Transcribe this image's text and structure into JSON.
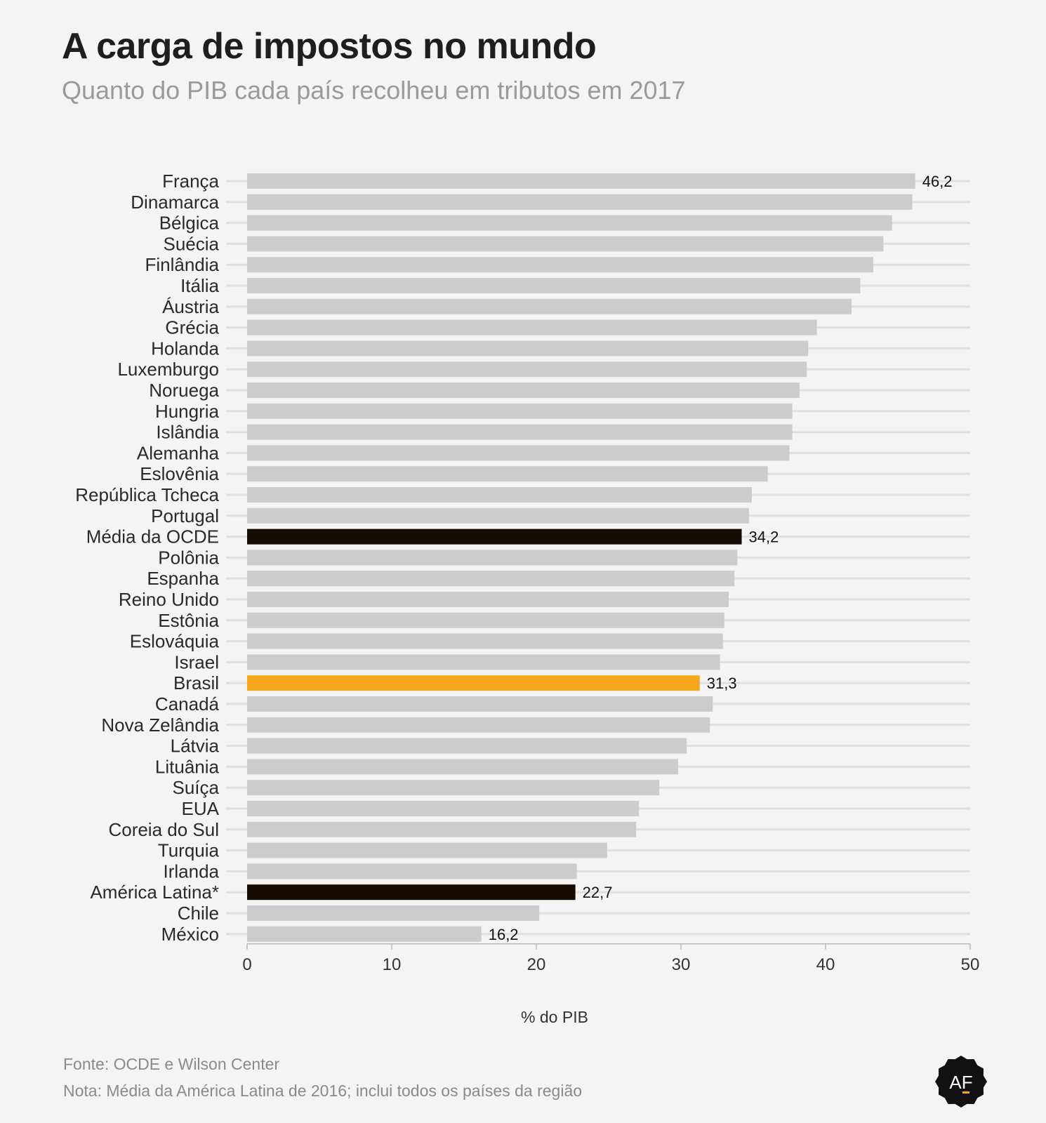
{
  "title": "A carga de impostos no mundo",
  "subtitle": "Quanto do PIB cada país recolheu em tributos em 2017",
  "footer": {
    "source": "Fonte: OCDE e Wilson Center",
    "note": "Nota: Média da América Latina de 2016; inclui todos os países da região"
  },
  "logo_text": "AF",
  "colors": {
    "background": "#f4f4f4",
    "bar_default": "#cccccc",
    "bar_average": "#150c04",
    "bar_brasil": "#f7a61c",
    "gridline": "#e0e0e0",
    "logo": "#111111"
  },
  "chart_data": {
    "type": "bar",
    "orientation": "horizontal",
    "xlabel": "% do PIB",
    "xlim": [
      0,
      50
    ],
    "xticks": [
      0,
      10,
      20,
      30,
      40,
      50
    ],
    "categories": [
      "França",
      "Dinamarca",
      "Bélgica",
      "Suécia",
      "Finlândia",
      "Itália",
      "Áustria",
      "Grécia",
      "Holanda",
      "Luxemburgo",
      "Noruega",
      "Hungria",
      "Islândia",
      "Alemanha",
      "Eslovênia",
      "República Tcheca",
      "Portugal",
      "Média da OCDE",
      "Polônia",
      "Espanha",
      "Reino Unido",
      "Estônia",
      "Eslováquia",
      "Israel",
      "Brasil",
      "Canadá",
      "Nova Zelândia",
      "Látvia",
      "Lituânia",
      "Suíça",
      "EUA",
      "Coreia do Sul",
      "Turquia",
      "Irlanda",
      "América Latina*",
      "Chile",
      "México"
    ],
    "values": [
      46.2,
      46.0,
      44.6,
      44.0,
      43.3,
      42.4,
      41.8,
      39.4,
      38.8,
      38.7,
      38.2,
      37.7,
      37.7,
      37.5,
      36.0,
      34.9,
      34.7,
      34.2,
      33.9,
      33.7,
      33.3,
      33.0,
      32.9,
      32.7,
      31.3,
      32.2,
      32.0,
      30.4,
      29.8,
      28.5,
      27.1,
      26.9,
      24.9,
      22.8,
      22.7,
      20.2,
      16.2
    ],
    "highlight": {
      "Média da OCDE": "bar_average",
      "América Latina*": "bar_average",
      "Brasil": "bar_brasil"
    },
    "data_labels": {
      "França": "46,2",
      "Média da OCDE": "34,2",
      "Brasil": "31,3",
      "América Latina*": "22,7",
      "México": "16,2"
    }
  }
}
